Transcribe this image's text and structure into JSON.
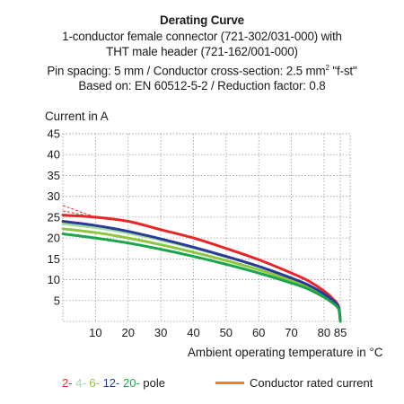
{
  "title_lines": [
    "Derating Curve",
    "1-conductor female connector (721-302/031-000) with",
    "THT male header (721-162/001-000)",
    "Pin spacing: 5 mm / Conductor cross-section: 2.5 mm",
    "Based on: EN 60512-5-2 / Reduction factor: 0.8"
  ],
  "title_line4_sup": "2",
  "title_line4_suffix": " \"f-st\"",
  "legend": {
    "poles": [
      {
        "label": "2-",
        "color": "#e8262a"
      },
      {
        "label": "4-",
        "color": "#9fe0a0"
      },
      {
        "label": "6-",
        "color": "#8ec63f"
      },
      {
        "label": "12-",
        "color": "#2a3a9a"
      },
      {
        "label": "20-",
        "color": "#1aa64a"
      }
    ],
    "suffix": "pole",
    "rated_label": "Conductor rated current",
    "rated_color": "#f07d28"
  },
  "chart_data": {
    "type": "line",
    "ylabel": "Current in A",
    "xlabel": "Ambient operating temperature in °C",
    "xlim": [
      0,
      88
    ],
    "ylim": [
      0,
      45
    ],
    "x_ticks": [
      10,
      20,
      30,
      40,
      50,
      60,
      70,
      80,
      85
    ],
    "y_ticks": [
      5,
      10,
      15,
      20,
      25,
      30,
      35,
      40,
      45
    ],
    "grid": true,
    "series": [
      {
        "name": "2-",
        "color": "#e8262a",
        "x": [
          0,
          10,
          20,
          30,
          40,
          50,
          60,
          70,
          75,
          80,
          83,
          84.5,
          85
        ],
        "y": [
          25.5,
          25.0,
          24.0,
          22.0,
          20.0,
          17.5,
          14.8,
          11.6,
          9.8,
          7.3,
          5.2,
          3.5,
          0
        ]
      },
      {
        "name": "4-",
        "color": "#9fe0a0",
        "x": [
          0,
          10,
          20,
          30,
          40,
          50,
          60,
          70,
          75,
          80,
          83,
          84.5,
          85
        ],
        "y": [
          23.4,
          22.5,
          21.2,
          19.5,
          17.6,
          15.5,
          13.2,
          10.4,
          8.8,
          6.6,
          4.8,
          3.3,
          0
        ]
      },
      {
        "name": "6-",
        "color": "#8ec63f",
        "x": [
          0,
          10,
          20,
          30,
          40,
          50,
          60,
          70,
          75,
          80,
          83,
          84.5,
          85
        ],
        "y": [
          22.2,
          21.3,
          20.0,
          18.4,
          16.6,
          14.6,
          12.4,
          9.8,
          8.3,
          6.2,
          4.5,
          3.1,
          0
        ]
      },
      {
        "name": "12-",
        "color": "#2a3a9a",
        "x": [
          0,
          10,
          20,
          30,
          40,
          50,
          60,
          70,
          75,
          80,
          83,
          84.5,
          85
        ],
        "y": [
          24.0,
          23.0,
          21.6,
          19.8,
          17.8,
          15.6,
          13.2,
          10.4,
          8.8,
          6.6,
          4.8,
          3.3,
          0
        ]
      },
      {
        "name": "20-",
        "color": "#1aa64a",
        "x": [
          0,
          10,
          20,
          30,
          40,
          50,
          60,
          70,
          75,
          80,
          83,
          84.5,
          85
        ],
        "y": [
          21.0,
          20.0,
          18.8,
          17.3,
          15.6,
          13.7,
          11.6,
          9.2,
          7.8,
          5.8,
          4.2,
          2.9,
          0
        ]
      }
    ],
    "dashed_extensions": [
      {
        "color": "#e8262a",
        "x": [
          0,
          10
        ],
        "y": [
          27.8,
          25.0
        ]
      },
      {
        "color": "#e8262a",
        "x": [
          0,
          10
        ],
        "y": [
          26.5,
          25.0
        ]
      }
    ]
  }
}
